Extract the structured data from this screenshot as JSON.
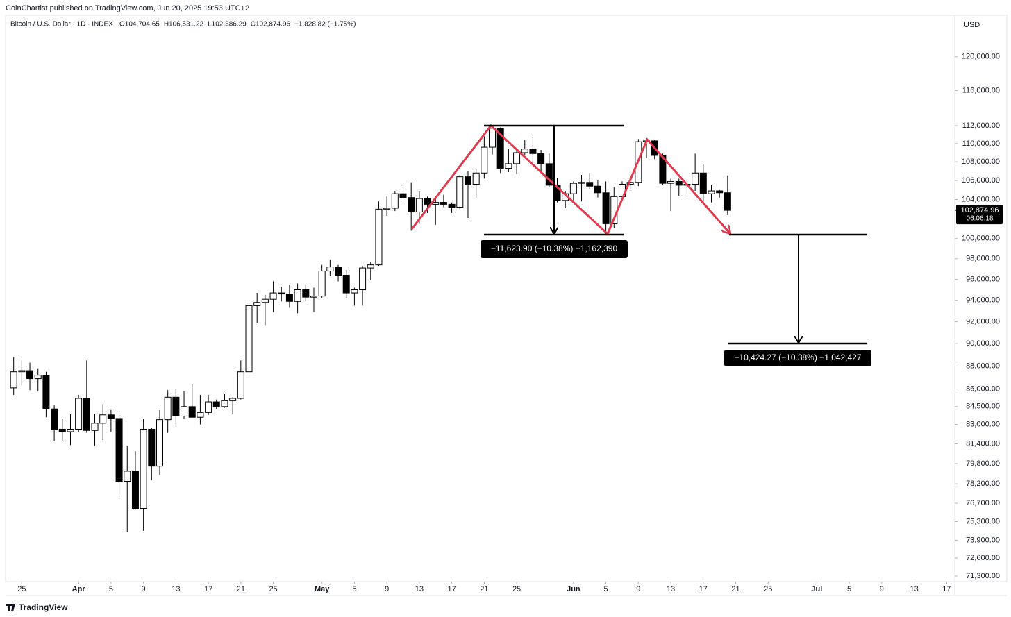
{
  "header": {
    "publisher": "CoinChartist published on TradingView.com, Jun 20, 2025 19:53 UTC+2",
    "footer_brand": "TradingView"
  },
  "chart_data": {
    "type": "candlestick",
    "title": "Bitcoin / U.S. Dollar · 1D · INDEX",
    "readout": [
      "O104,704.65",
      "H106,531.22",
      "L102,386.29",
      "C102,874.96",
      "−1,828.82 (−1.75%)"
    ],
    "currency": "USD",
    "log_scale": true,
    "grid": false,
    "up_color": "#ffffff",
    "down_color": "#000000",
    "categories": [
      "Mar 24",
      "Mar 25",
      "Mar 26",
      "Mar 27",
      "Mar 28",
      "Mar 29",
      "Mar 30",
      "Mar 31",
      "Apr 1",
      "Apr 2",
      "Apr 3",
      "Apr 4",
      "Apr 5",
      "Apr 6",
      "Apr 7",
      "Apr 8",
      "Apr 9",
      "Apr 10",
      "Apr 11",
      "Apr 12",
      "Apr 13",
      "Apr 14",
      "Apr 15",
      "Apr 16",
      "Apr 17",
      "Apr 18",
      "Apr 19",
      "Apr 20",
      "Apr 21",
      "Apr 22",
      "Apr 23",
      "Apr 24",
      "Apr 25",
      "Apr 26",
      "Apr 27",
      "Apr 28",
      "Apr 29",
      "Apr 30",
      "May 1",
      "May 2",
      "May 3",
      "May 4",
      "May 5",
      "May 6",
      "May 7",
      "May 8",
      "May 9",
      "May 10",
      "May 11",
      "May 12",
      "May 13",
      "May 14",
      "May 15",
      "May 16",
      "May 17",
      "May 18",
      "May 19",
      "May 20",
      "May 21",
      "May 22",
      "May 23",
      "May 24",
      "May 25",
      "May 26",
      "May 27",
      "May 28",
      "May 29",
      "May 30",
      "May 31",
      "Jun 1",
      "Jun 2",
      "Jun 3",
      "Jun 4",
      "Jun 5",
      "Jun 6",
      "Jun 7",
      "Jun 8",
      "Jun 9",
      "Jun 10",
      "Jun 11",
      "Jun 12",
      "Jun 13",
      "Jun 14",
      "Jun 15",
      "Jun 16",
      "Jun 17",
      "Jun 18",
      "Jun 19",
      "Jun 20"
    ],
    "open": [
      86100,
      87500,
      87600,
      86900,
      87200,
      84300,
      82600,
      82400,
      82600,
      85200,
      82500,
      83100,
      83800,
      83500,
      78400,
      79200,
      76300,
      82600,
      79600,
      83400,
      85300,
      83700,
      84500,
      83600,
      84000,
      84900,
      84500,
      85000,
      85200,
      87500,
      93500,
      93800,
      94100,
      94700,
      94600,
      93900,
      95000,
      94300,
      94400,
      96800,
      97200,
      96400,
      94700,
      95000,
      97100,
      97400,
      103000,
      103100,
      104600,
      104200,
      102700,
      104100,
      103500,
      103700,
      103500,
      103200,
      106400,
      105600,
      106800,
      109600,
      111700,
      107300,
      107800,
      109000,
      109400,
      108900,
      107800,
      105500,
      103900,
      104600,
      105700,
      105800,
      105400,
      104700,
      101500,
      104300,
      105600,
      105800,
      110200,
      110300,
      108700,
      105700,
      105900,
      105500,
      105600,
      106800,
      104600,
      104900,
      104704.65
    ],
    "high": [
      88800,
      88600,
      88300,
      87800,
      87500,
      84600,
      83500,
      83900,
      85500,
      88500,
      83900,
      84700,
      84200,
      83800,
      81200,
      80800,
      83500,
      82700,
      84200,
      85900,
      86000,
      85800,
      86400,
      85500,
      85500,
      85100,
      85600,
      85300,
      88500,
      93900,
      94700,
      94500,
      95800,
      95300,
      95500,
      95600,
      95500,
      95200,
      97400,
      97900,
      97400,
      96900,
      95200,
      97300,
      97700,
      103800,
      104300,
      104900,
      105500,
      105800,
      104900,
      104300,
      104100,
      104500,
      103700,
      106600,
      107000,
      107200,
      110800,
      111900,
      111800,
      109400,
      109300,
      110400,
      110700,
      109300,
      108900,
      106300,
      104900,
      105900,
      106600,
      106800,
      106000,
      105900,
      105300,
      105900,
      106400,
      110500,
      110600,
      110400,
      108900,
      106200,
      106200,
      106200,
      108900,
      107700,
      105500,
      105000,
      106531.22
    ],
    "low": [
      85500,
      86300,
      85900,
      85800,
      83600,
      81600,
      81600,
      81300,
      82400,
      82300,
      81200,
      81700,
      82400,
      77200,
      74500,
      76200,
      74600,
      78500,
      78900,
      82300,
      83000,
      83500,
      83600,
      83000,
      83800,
      84300,
      84400,
      83900,
      85100,
      87000,
      91900,
      91700,
      92900,
      93900,
      93300,
      92800,
      93900,
      92900,
      94200,
      96300,
      95800,
      94200,
      93500,
      93500,
      95900,
      97300,
      102300,
      102800,
      103500,
      100800,
      101500,
      102600,
      101400,
      103200,
      102600,
      103000,
      102100,
      104200,
      106200,
      108800,
      106800,
      106900,
      106700,
      108700,
      107600,
      106900,
      105300,
      103700,
      103100,
      103900,
      103800,
      105100,
      104200,
      100400,
      101100,
      103900,
      104900,
      105400,
      108400,
      108300,
      105500,
      102800,
      104400,
      104500,
      104900,
      103400,
      103700,
      104200,
      102386.29
    ],
    "close": [
      87500,
      87600,
      86900,
      87200,
      84300,
      82600,
      82400,
      82600,
      85200,
      82500,
      83100,
      83800,
      83500,
      78400,
      79200,
      76300,
      82600,
      79600,
      83400,
      85300,
      83700,
      84500,
      83600,
      84000,
      84900,
      84500,
      85000,
      85200,
      87500,
      93500,
      93800,
      94100,
      94700,
      94600,
      93900,
      95000,
      94300,
      94400,
      96800,
      97200,
      96400,
      94700,
      95000,
      97100,
      97400,
      103000,
      103100,
      104600,
      104200,
      102700,
      104100,
      103500,
      103700,
      103500,
      103200,
      106400,
      105600,
      106800,
      109600,
      111700,
      107300,
      107800,
      109000,
      109400,
      108900,
      107800,
      105500,
      103900,
      104600,
      105700,
      105800,
      105400,
      104700,
      101500,
      104300,
      105600,
      105800,
      110200,
      110300,
      108700,
      105700,
      105900,
      105500,
      105600,
      106800,
      104600,
      104900,
      104705,
      102874.96
    ],
    "last_price": {
      "value": 102874.96,
      "label": "102,874.96"
    },
    "countdown": "06:06:18",
    "xlim": [
      "Mar 23",
      "Jul 18"
    ],
    "xticks": [
      {
        "value": "Mar 25",
        "label": "25"
      },
      {
        "value": "Apr 1",
        "label": "Apr"
      },
      {
        "value": "Apr 5",
        "label": "5"
      },
      {
        "value": "Apr 9",
        "label": "9"
      },
      {
        "value": "Apr 13",
        "label": "13"
      },
      {
        "value": "Apr 17",
        "label": "17"
      },
      {
        "value": "Apr 21",
        "label": "21"
      },
      {
        "value": "Apr 25",
        "label": "25"
      },
      {
        "value": "May 1",
        "label": "May"
      },
      {
        "value": "May 5",
        "label": "5"
      },
      {
        "value": "May 9",
        "label": "9"
      },
      {
        "value": "May 13",
        "label": "13"
      },
      {
        "value": "May 17",
        "label": "17"
      },
      {
        "value": "May 21",
        "label": "21"
      },
      {
        "value": "May 25",
        "label": "25"
      },
      {
        "value": "Jun 1",
        "label": "Jun"
      },
      {
        "value": "Jun 5",
        "label": "5"
      },
      {
        "value": "Jun 9",
        "label": "9"
      },
      {
        "value": "Jun 13",
        "label": "13"
      },
      {
        "value": "Jun 17",
        "label": "17"
      },
      {
        "value": "Jun 21",
        "label": "21"
      },
      {
        "value": "Jun 25",
        "label": "25"
      },
      {
        "value": "Jul 1",
        "label": "Jul"
      },
      {
        "value": "Jul 5",
        "label": "5"
      },
      {
        "value": "Jul 9",
        "label": "9"
      },
      {
        "value": "Jul 13",
        "label": "13"
      },
      {
        "value": "Jul 17",
        "label": "17"
      }
    ],
    "ylim": [
      70900,
      125100
    ],
    "yticks": [
      {
        "value": 120000,
        "label": "120,000.00"
      },
      {
        "value": 116000,
        "label": "116,000.00"
      },
      {
        "value": 112000,
        "label": "112,000.00"
      },
      {
        "value": 110000,
        "label": "110,000.00"
      },
      {
        "value": 108000,
        "label": "108,000.00"
      },
      {
        "value": 106000,
        "label": "106,000.00"
      },
      {
        "value": 104000,
        "label": "104,000.00"
      },
      {
        "value": 100000,
        "label": "100,000.00"
      },
      {
        "value": 98000,
        "label": "98,000.00"
      },
      {
        "value": 96000,
        "label": "96,000.00"
      },
      {
        "value": 94000,
        "label": "94,000.00"
      },
      {
        "value": 92000,
        "label": "92,000.00"
      },
      {
        "value": 90000,
        "label": "90,000.00"
      },
      {
        "value": 88000,
        "label": "88,000.00"
      },
      {
        "value": 86000,
        "label": "86,000.00"
      },
      {
        "value": 84500,
        "label": "84,500.00"
      },
      {
        "value": 83000,
        "label": "83,000.00"
      },
      {
        "value": 81400,
        "label": "81,400.00"
      },
      {
        "value": 79800,
        "label": "79,800.00"
      },
      {
        "value": 78200,
        "label": "78,200.00"
      },
      {
        "value": 76700,
        "label": "76,700.00"
      },
      {
        "value": 75300,
        "label": "75,300.00"
      },
      {
        "value": 73900,
        "label": "73,900.00"
      },
      {
        "value": 72600,
        "label": "72,600.00"
      },
      {
        "value": 71300,
        "label": "71,300.00"
      }
    ],
    "annotations": [
      "−11,623.90 (−10.38%) −1,162,390",
      "−10,424.27 (−10.38%) −1,042,427"
    ]
  }
}
